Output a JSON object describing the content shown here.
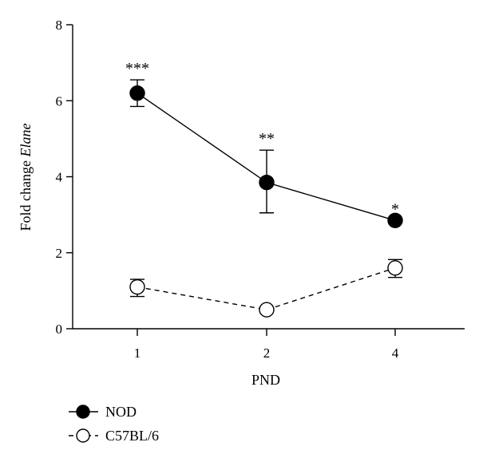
{
  "chart_data": {
    "type": "line",
    "categories": [
      "1",
      "2",
      "4"
    ],
    "xlabel": "PND",
    "ylabel_prefix": "Fold change ",
    "ylabel_gene": "Elane",
    "ylim": [
      0,
      8
    ],
    "yticks": [
      0,
      2,
      4,
      6,
      8
    ],
    "grid": false,
    "legend_position": "bottom-left",
    "series": [
      {
        "name": "NOD",
        "marker": "filled-circle",
        "line_style": "solid",
        "values": [
          6.2,
          3.85,
          2.85
        ],
        "err_low": [
          5.85,
          3.05,
          2.85
        ],
        "err_high": [
          6.55,
          4.7,
          2.85
        ],
        "significance": [
          "***",
          "**",
          "*"
        ]
      },
      {
        "name": "C57BL/6",
        "marker": "open-circle",
        "line_style": "dashed",
        "values": [
          1.1,
          0.5,
          1.6
        ],
        "err_low": [
          0.85,
          0.5,
          1.35
        ],
        "err_high": [
          1.3,
          0.5,
          1.82
        ],
        "significance": [
          "",
          "",
          ""
        ]
      }
    ]
  }
}
